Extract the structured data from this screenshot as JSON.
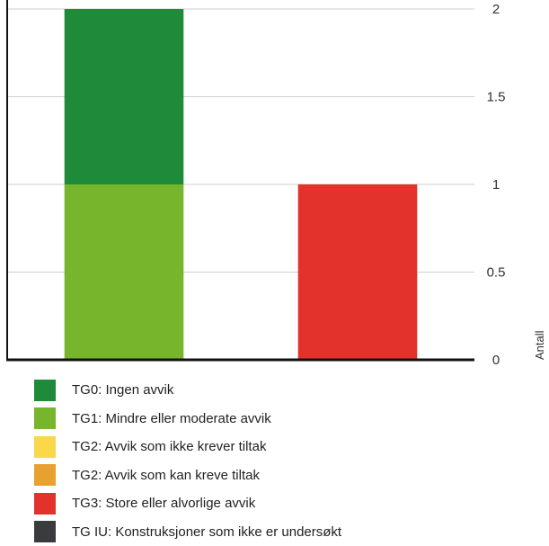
{
  "chart_data": {
    "type": "bar",
    "stacked": true,
    "title": "",
    "xlabel": "",
    "ylabel": "Antall",
    "ylim": [
      0,
      2
    ],
    "yticks": [
      0,
      0.5,
      1,
      1.5,
      2
    ],
    "ytick_labels": [
      "0",
      "0.5",
      "1",
      "1.5",
      "2"
    ],
    "y_axis_position": "right",
    "grid": true,
    "legend_position": "bottom",
    "categories": [
      "",
      ""
    ],
    "series": [
      {
        "name": "TG0: Ingen avvik",
        "color": "#1e8a3a",
        "values": [
          1,
          0
        ]
      },
      {
        "name": "TG1: Mindre eller moderate avvik",
        "color": "#76b52c",
        "values": [
          1,
          0
        ]
      },
      {
        "name": "TG2: Avvik som ikke krever tiltak",
        "color": "#f9d84a",
        "values": [
          0,
          0
        ]
      },
      {
        "name": "TG2: Avvik som kan kreve tiltak",
        "color": "#e8a030",
        "values": [
          0,
          0
        ]
      },
      {
        "name": "TG3: Store eller alvorlige avvik",
        "color": "#e3322b",
        "values": [
          0,
          1
        ]
      },
      {
        "name": "TG IU: Konstruksjoner som ikke er undersøkt",
        "color": "#3a3b3d",
        "values": [
          0,
          0
        ]
      }
    ],
    "stack_order": [
      "TG1: Mindre eller moderate avvik",
      "TG3: Store eller alvorlige avvik",
      "TG2: Avvik som kan kreve tiltak",
      "TG2: Avvik som ikke krever tiltak",
      "TG0: Ingen avvik",
      "TG IU: Konstruksjoner som ikke er undersøkt"
    ]
  }
}
